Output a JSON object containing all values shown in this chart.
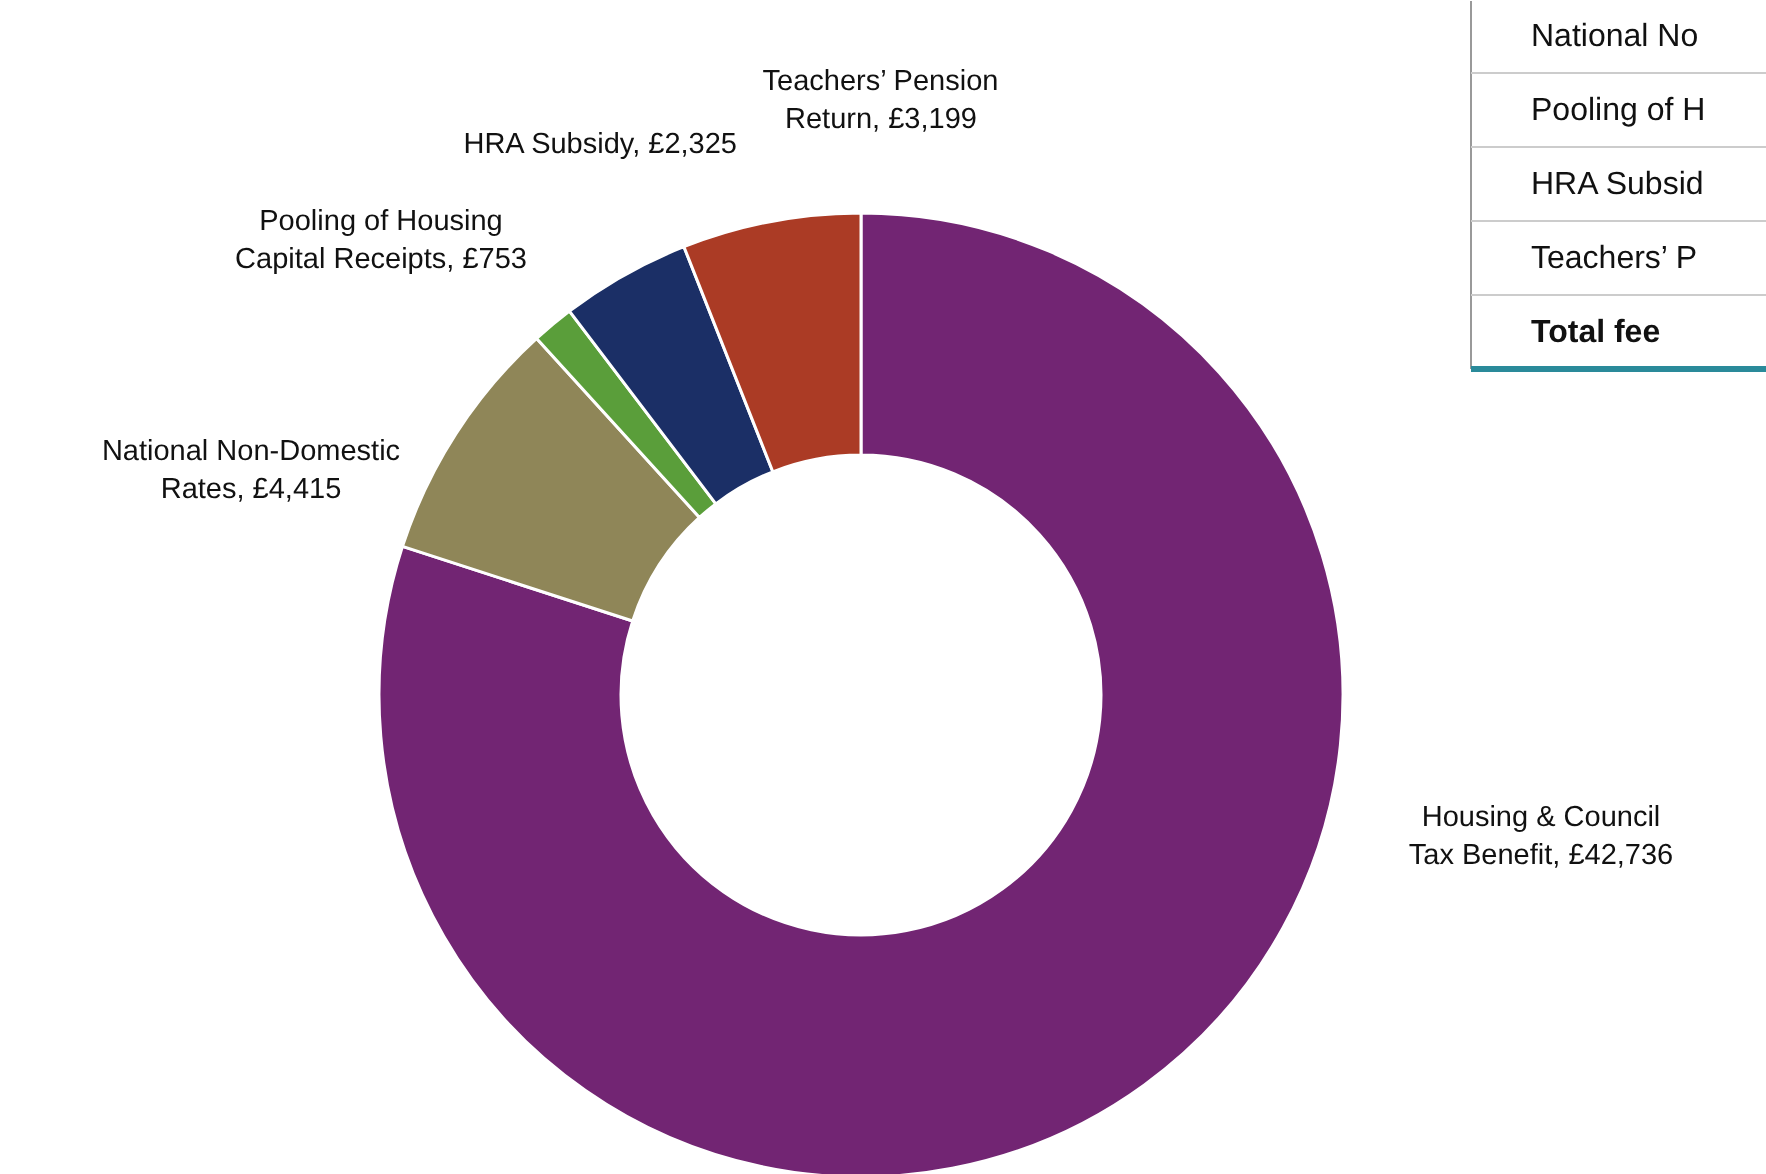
{
  "chart_data": {
    "type": "donut",
    "categories": [
      "Housing & Council Tax Benefit",
      "National Non-Domestic Rates",
      "Pooling of Housing Capital Receipts",
      "HRA Subsidy",
      "Teachers’ Pension Return"
    ],
    "values": [
      42736,
      4415,
      753,
      2325,
      3199
    ],
    "value_labels": [
      "£42,736",
      "£4,415",
      "£753",
      "£2,325",
      "£3,199"
    ],
    "colors": [
      "#722573",
      "#8f8658",
      "#5a9e3a",
      "#1b2f66",
      "#ab3b25"
    ],
    "annotations": [
      "National No",
      "Pooling of H",
      "HRA Subsid",
      "Teachers’ P",
      "Total fee"
    ]
  }
}
